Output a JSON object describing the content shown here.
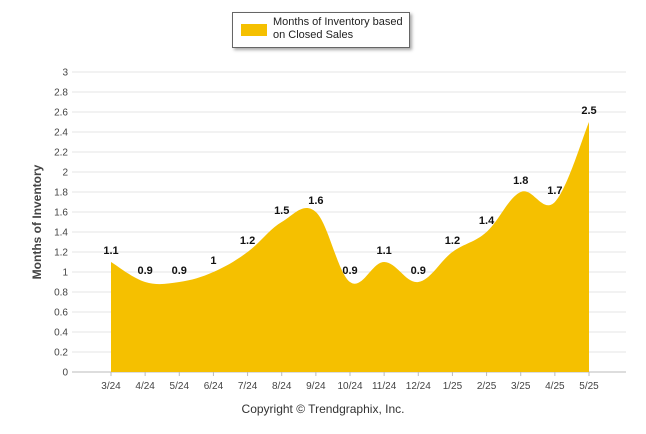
{
  "chart_data": {
    "type": "area",
    "categories": [
      "3/24",
      "4/24",
      "5/24",
      "6/24",
      "7/24",
      "8/24",
      "9/24",
      "10/24",
      "11/24",
      "12/24",
      "1/25",
      "2/25",
      "3/25",
      "4/25",
      "5/25"
    ],
    "series": [
      {
        "name": "Months of Inventory based on Closed Sales",
        "values": [
          1.1,
          0.9,
          0.9,
          1,
          1.2,
          1.5,
          1.6,
          0.9,
          1.1,
          0.9,
          1.2,
          1.4,
          1.8,
          1.7,
          2.5
        ],
        "labels": [
          "1.1",
          "0.9",
          "0.9",
          "1",
          "1.2",
          "1.5",
          "1.6",
          "0.9",
          "1.1",
          "0.9",
          "1.2",
          "1.4",
          "1.8",
          "1.7",
          "2.5"
        ]
      }
    ],
    "ylabel": "Months of Inventory",
    "xlabel": "",
    "ylim": [
      0,
      3
    ],
    "yticks": [
      "0",
      "0.2",
      "0.4",
      "0.6",
      "0.8",
      "1",
      "1.2",
      "1.4",
      "1.6",
      "1.8",
      "2",
      "2.2",
      "2.4",
      "2.6",
      "2.8",
      "3"
    ],
    "grid": true,
    "legend_position": "top-center",
    "color": "#F5C000"
  },
  "legend": {
    "label": "Months of Inventory based on Closed Sales"
  },
  "footer": {
    "copyright": "Copyright © Trendgraphix, Inc."
  }
}
